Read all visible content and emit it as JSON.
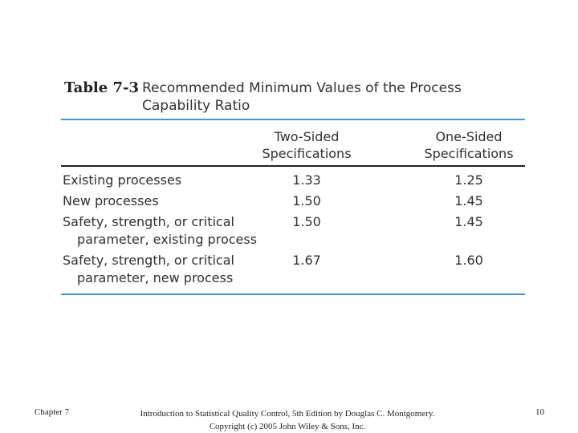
{
  "table": {
    "label": "Table 7-3",
    "caption": "Recommended Minimum Values of the Process Capability Ratio",
    "columns": [
      "Two-Sided Specifications",
      "One-Sided Specifications"
    ],
    "rows": [
      {
        "label_line1": "Existing processes",
        "label_line2": "",
        "two_sided": "1.33",
        "one_sided": "1.25"
      },
      {
        "label_line1": "New processes",
        "label_line2": "",
        "two_sided": "1.50",
        "one_sided": "1.45"
      },
      {
        "label_line1": "Safety, strength, or critical",
        "label_line2": "parameter, existing process",
        "two_sided": "1.50",
        "one_sided": "1.45"
      },
      {
        "label_line1": "Safety, strength, or critical",
        "label_line2": "parameter, new process",
        "two_sided": "1.67",
        "one_sided": "1.60"
      }
    ],
    "colors": {
      "rule": "#4b93d0",
      "text": "#303030"
    }
  },
  "footer": {
    "chapter": "Chapter 7",
    "citation_line1": "Introduction to Statistical Quality Control, 5th Edition by Douglas C. Montgomery.",
    "citation_line2": "Copyright (c) 2005  John Wiley & Sons, Inc.",
    "page_number": "10"
  }
}
